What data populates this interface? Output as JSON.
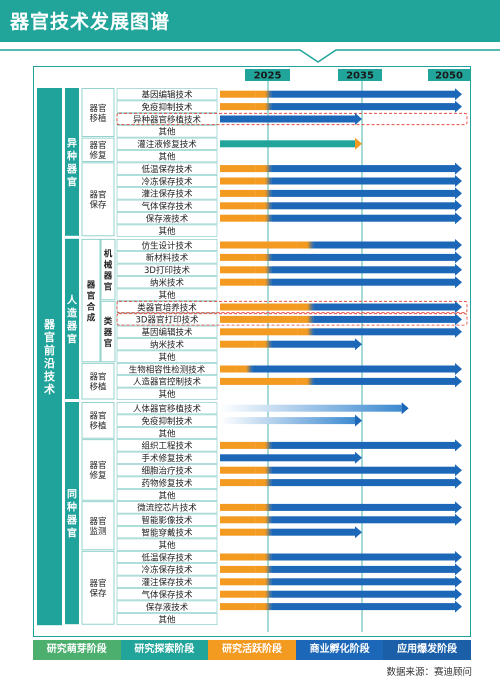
{
  "title": "器官技术发展图谱",
  "source": "数据来源：赛迪顾问",
  "colors": {
    "teal": "#1fa39a",
    "green": "#4caf6e",
    "orange": "#f39a21",
    "blue": "#1c67b7",
    "navy": "#0f4a91"
  },
  "legend": [
    {
      "label": "研究萌芽阶段",
      "color": "#4caf6e"
    },
    {
      "label": "研究探索阶段",
      "color": "#21a59b"
    },
    {
      "label": "研究活跃阶段",
      "color": "#f39a21"
    },
    {
      "label": "商业孵化阶段",
      "color": "#1c67b7"
    },
    {
      "label": "应用爆发阶段",
      "color": "#1b5fa8"
    }
  ],
  "chart_data": {
    "type": "gantt",
    "years": [
      "2025",
      "2035",
      "2050"
    ],
    "root": "器官前沿技术",
    "categories": [
      {
        "label": "异种器官",
        "groups": [
          {
            "label": "器官移植",
            "items": [
              {
                "label": "基因编辑技术",
                "end": 2050,
                "orange": 2022
              },
              {
                "label": "免疫抑制技术",
                "end": 2050,
                "orange": 2022
              },
              {
                "label": "异种器官移植技术",
                "end": 2035,
                "highlight": true
              },
              {
                "label": "其他"
              }
            ]
          },
          {
            "label": "器官修复",
            "items": [
              {
                "label": "灌注液修复技术",
                "end": 2035,
                "green": true
              },
              {
                "label": "其他"
              }
            ]
          },
          {
            "label": "器官保存",
            "items": [
              {
                "label": "低温保存技术",
                "end": 2050,
                "orange": 2022
              },
              {
                "label": "冷冻保存技术",
                "end": 2050,
                "orange": 2022
              },
              {
                "label": "灌注保存技术",
                "end": 2050,
                "orange": 2022
              },
              {
                "label": "气体保存技术",
                "end": 2050,
                "orange": 2022
              },
              {
                "label": "保存液技术",
                "end": 2050,
                "orange": 2022
              },
              {
                "label": "其他"
              }
            ]
          }
        ]
      },
      {
        "label": "人造器官",
        "groups": [
          {
            "label": "器官合成",
            "subgroups": [
              {
                "label": "机械器官",
                "items": [
                  {
                    "label": "仿生设计技术",
                    "end": 2050,
                    "orange": 2028
                  },
                  {
                    "label": "新材料技术",
                    "end": 2050,
                    "orange": 2022
                  },
                  {
                    "label": "3D打印技术",
                    "end": 2050,
                    "orange": 2022
                  },
                  {
                    "label": "纳米技术",
                    "end": 2050,
                    "orange": 2022
                  },
                  {
                    "label": "其他"
                  }
                ]
              },
              {
                "label": "类器官",
                "items": [
                  {
                    "label": "类器官培养技术",
                    "end": 2050,
                    "orange": 2028,
                    "highlight": true
                  },
                  {
                    "label": "3D器官打印技术",
                    "end": 2050,
                    "orange": 2028,
                    "highlight": true
                  },
                  {
                    "label": "基因编辑技术",
                    "end": 2050,
                    "orange": 2028
                  },
                  {
                    "label": "纳米技术",
                    "end": 2035,
                    "orange": 2022
                  },
                  {
                    "label": "其他"
                  }
                ]
              }
            ]
          },
          {
            "label": "器官移植",
            "items": [
              {
                "label": "生物相容性检测技术",
                "end": 2050,
                "orange": 2018
              },
              {
                "label": "人造器官控制技术",
                "end": 2050,
                "orange": 2028
              },
              {
                "label": "其他"
              }
            ]
          }
        ]
      },
      {
        "label": "同种器官",
        "groups": [
          {
            "label": "器官移植",
            "items": [
              {
                "label": "人体器官移植技术",
                "end": 2042,
                "fadeStart": true
              },
              {
                "label": "免疫抑制技术",
                "end": 2035,
                "fadeStart": true
              },
              {
                "label": "其他"
              }
            ]
          },
          {
            "label": "器官修复",
            "items": [
              {
                "label": "组织工程技术",
                "end": 2050,
                "orange": 2022
              },
              {
                "label": "手术修复技术",
                "end": 2035
              },
              {
                "label": "细胞治疗技术",
                "end": 2050,
                "orange": 2022
              },
              {
                "label": "药物修复技术",
                "end": 2050,
                "orange": 2022
              },
              {
                "label": "其他"
              }
            ]
          },
          {
            "label": "器官监测",
            "items": [
              {
                "label": "微流控芯片技术",
                "end": 2050,
                "orange": 2022
              },
              {
                "label": "智能影像技术",
                "end": 2050,
                "orange": 2022
              },
              {
                "label": "智能穿戴技术",
                "end": 2035,
                "orange": 2022
              },
              {
                "label": "其他"
              }
            ]
          },
          {
            "label": "器官保存",
            "items": [
              {
                "label": "低温保存技术",
                "end": 2050,
                "orange": 2022
              },
              {
                "label": "冷冻保存技术",
                "end": 2050,
                "orange": 2022
              },
              {
                "label": "灌注保存技术",
                "end": 2050,
                "orange": 2022
              },
              {
                "label": "气体保存技术",
                "end": 2050,
                "orange": 2022
              },
              {
                "label": "保存液技术",
                "end": 2050,
                "orange": 2022
              },
              {
                "label": "其他"
              }
            ]
          }
        ]
      }
    ]
  }
}
